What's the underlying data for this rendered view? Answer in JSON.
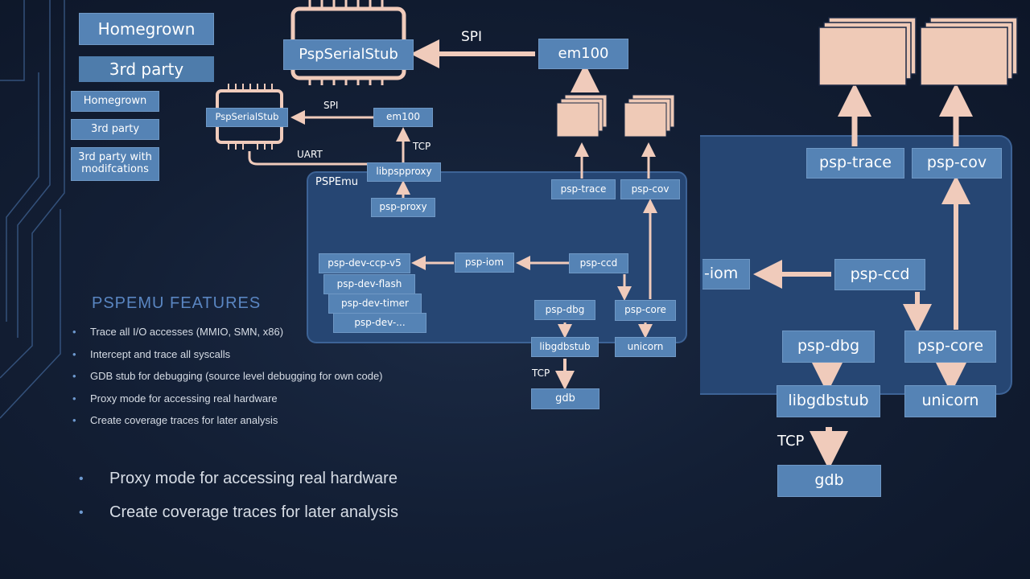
{
  "legend_large": {
    "homegrown": "Homegrown",
    "third_party": "3rd party"
  },
  "legend_small": {
    "homegrown": "Homegrown",
    "third_party": "3rd party",
    "third_party_mod": "3rd party with modifcations"
  },
  "features": {
    "title": "PSPEMU FEATURES",
    "items": [
      "Trace all I/O accesses (MMIO, SMN, x86)",
      "Intercept and trace all syscalls",
      "GDB stub for debugging (source level debugging for own code)",
      "Proxy mode for accessing real hardware",
      "Create coverage traces for later analysis"
    ]
  },
  "features_large": {
    "items": [
      "Proxy mode for accessing real hardware",
      "Create coverage traces for later analysis"
    ]
  },
  "top_large": {
    "stub": "PspSerialStub",
    "em100": "em100",
    "spi": "SPI"
  },
  "small_diagram": {
    "stub": "PspSerialStub",
    "em100": "em100",
    "spi": "SPI",
    "uart": "UART",
    "tcp_top": "TCP",
    "libpspproxy": "libpspproxy",
    "region_label": "PSPEmu",
    "psp_proxy": "psp-proxy",
    "psp_trace": "psp-trace",
    "psp_cov": "psp-cov",
    "dev_ccp": "psp-dev-ccp-v5",
    "dev_flash": "psp-dev-flash",
    "dev_timer": "psp-dev-timer",
    "dev_more": "psp-dev-...",
    "psp_iom": "psp-iom",
    "psp_ccd": "psp-ccd",
    "psp_dbg": "psp-dbg",
    "psp_core": "psp-core",
    "libgdbstub": "libgdbstub",
    "unicorn": "unicorn",
    "tcp_bottom": "TCP",
    "gdb": "gdb"
  },
  "large_diagram": {
    "psp_trace": "psp-trace",
    "psp_cov": "psp-cov",
    "iom_partial": "-iom",
    "psp_ccd": "psp-ccd",
    "psp_dbg": "psp-dbg",
    "psp_core": "psp-core",
    "libgdbstub": "libgdbstub",
    "unicorn": "unicorn",
    "tcp": "TCP",
    "gdb": "gdb"
  },
  "colors": {
    "box": "#5583b5",
    "arrow": "#f0cbbb",
    "region": "#264673",
    "title": "#5a86c2"
  }
}
